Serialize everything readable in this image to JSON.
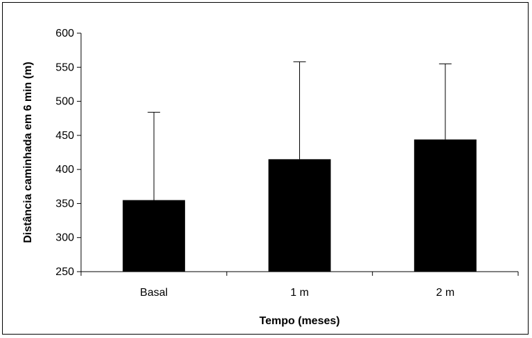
{
  "chart_data": {
    "type": "bar",
    "title": "",
    "xlabel": "Tempo (meses)",
    "ylabel": "Distância caminhada em 6 min (m)",
    "categories": [
      "Basal",
      "1 m",
      "2 m"
    ],
    "values": [
      355,
      415,
      444
    ],
    "error_upper": [
      484,
      558,
      555
    ],
    "ylim": [
      250,
      600
    ],
    "yticks": [
      250,
      300,
      350,
      400,
      450,
      500,
      550,
      600
    ],
    "grid": false,
    "legend": "none",
    "bar_color": "#000000"
  }
}
